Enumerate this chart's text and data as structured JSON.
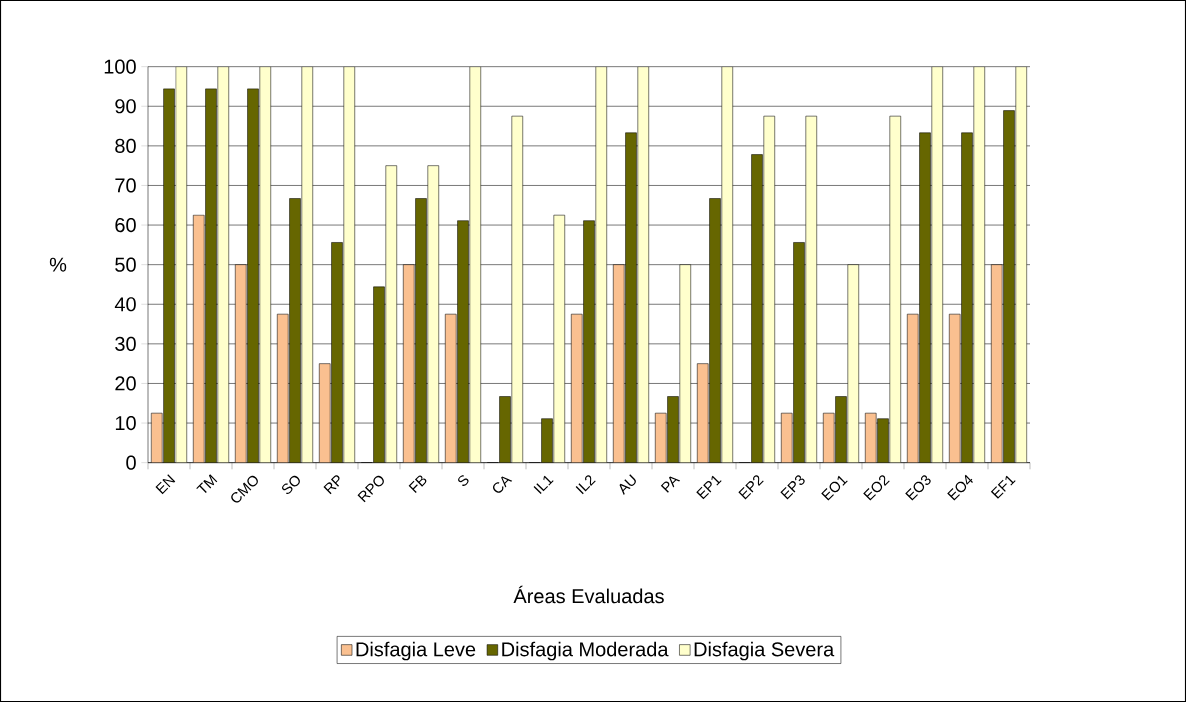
{
  "chart_data": {
    "type": "bar",
    "xlabel": "Áreas Evaluadas",
    "ylabel": "%",
    "categories": [
      "EN",
      "TM",
      "CMO",
      "SO",
      "RP",
      "RPO",
      "FB",
      "S",
      "CA",
      "IL1",
      "IL2",
      "AU",
      "PA",
      "EP1",
      "EP2",
      "EP3",
      "EO1",
      "EO2",
      "EO3",
      "EO4",
      "EF1"
    ],
    "series": [
      {
        "name": "Disfagia Leve",
        "color": "#fac090",
        "values": [
          12.5,
          62.5,
          50,
          37.5,
          25,
          0,
          50,
          37.5,
          0,
          0,
          37.5,
          50,
          12.5,
          25,
          0,
          12.5,
          12.5,
          12.5,
          37.5,
          37.5,
          50
        ]
      },
      {
        "name": "Disfagia Moderada",
        "color": "#666600",
        "values": [
          94.4,
          94.4,
          94.4,
          66.7,
          55.6,
          44.4,
          66.7,
          61.1,
          16.7,
          11.1,
          61.1,
          83.3,
          16.7,
          66.7,
          77.8,
          55.6,
          16.7,
          11.1,
          83.3,
          83.3,
          88.9
        ]
      },
      {
        "name": "Disfagia Severa",
        "color": "#ffffcc",
        "values": [
          100,
          100,
          100,
          100,
          100,
          75,
          75,
          100,
          87.5,
          62.5,
          100,
          100,
          50,
          100,
          87.5,
          87.5,
          50,
          87.5,
          100,
          100,
          100
        ]
      }
    ],
    "ylim": [
      0,
      100
    ],
    "yticks": [
      0,
      10,
      20,
      30,
      40,
      50,
      60,
      70,
      80,
      90,
      100
    ],
    "grid": "y",
    "legend": "bottom"
  }
}
